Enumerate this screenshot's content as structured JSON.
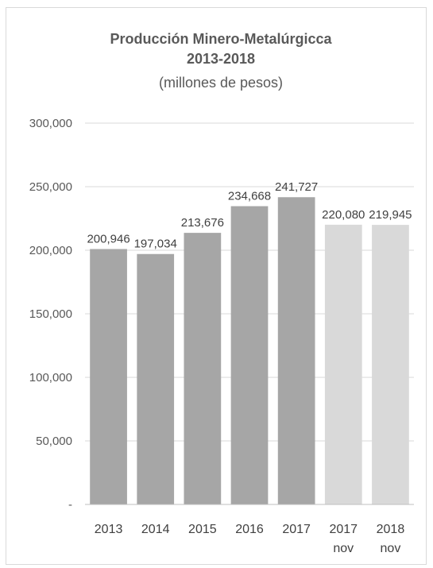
{
  "chart_data": {
    "type": "bar",
    "title": "Producción Minero-Metalúrgicca",
    "title_line2": "2013-2018",
    "subtitle": "(millones de pesos)",
    "categories": [
      {
        "line1": "2013",
        "line2": ""
      },
      {
        "line1": "2014",
        "line2": ""
      },
      {
        "line1": "2015",
        "line2": ""
      },
      {
        "line1": "2016",
        "line2": ""
      },
      {
        "line1": "2017",
        "line2": ""
      },
      {
        "line1": "2017",
        "line2": "nov"
      },
      {
        "line1": "2018",
        "line2": "nov"
      }
    ],
    "values": [
      200946,
      197034,
      213676,
      234668,
      241727,
      220080,
      219945
    ],
    "value_labels": [
      "200,946",
      "197,034",
      "213,676",
      "234,668",
      "241,727",
      "220,080",
      "219,945"
    ],
    "bar_colors": [
      "#a6a6a6",
      "#a6a6a6",
      "#a6a6a6",
      "#a6a6a6",
      "#a6a6a6",
      "#d9d9d9",
      "#d9d9d9"
    ],
    "ylim": [
      0,
      300000
    ],
    "yticks": [
      0,
      50000,
      100000,
      150000,
      200000,
      250000,
      300000
    ],
    "ytick_labels": [
      "-",
      "50,000",
      "100,000",
      "150,000",
      "200,000",
      "250,000",
      "300,000"
    ],
    "xlabel": "",
    "ylabel": "",
    "grid": true,
    "legend": "none"
  }
}
